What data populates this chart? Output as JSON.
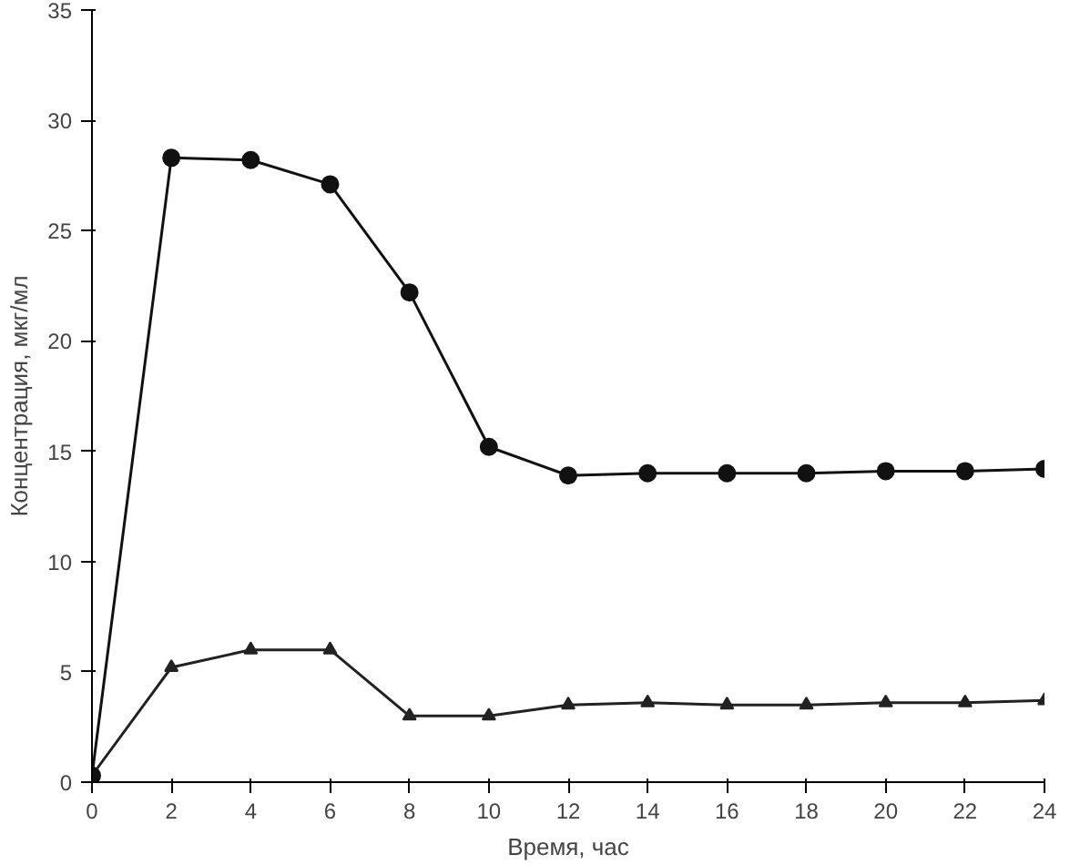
{
  "chart_data": {
    "type": "line",
    "xlabel": "Время, час",
    "ylabel": "Концентрация, мкг/мл",
    "x": [
      0,
      2,
      4,
      6,
      8,
      10,
      12,
      14,
      16,
      18,
      20,
      22,
      24
    ],
    "series": [
      {
        "color": "#222222",
        "marker": "triangle",
        "values": [
          0.3,
          5.2,
          6.0,
          6.0,
          3.0,
          3.0,
          3.5,
          3.6,
          3.5,
          3.5,
          3.6,
          3.6,
          3.7
        ]
      },
      {
        "color": "#111111",
        "marker": "circle",
        "values": [
          0.3,
          28.3,
          28.2,
          27.1,
          22.2,
          15.2,
          13.9,
          14.0,
          14.0,
          14.0,
          14.1,
          14.1,
          14.2
        ]
      }
    ],
    "xlim": [
      0,
      24
    ],
    "xticks": [
      0,
      2,
      4,
      6,
      8,
      10,
      12,
      14,
      16,
      18,
      20,
      22,
      24
    ],
    "ylim": [
      0,
      35
    ],
    "yticks": [
      0,
      5,
      10,
      15,
      20,
      25,
      30,
      35
    ],
    "grid": false,
    "line_style": "solid"
  }
}
